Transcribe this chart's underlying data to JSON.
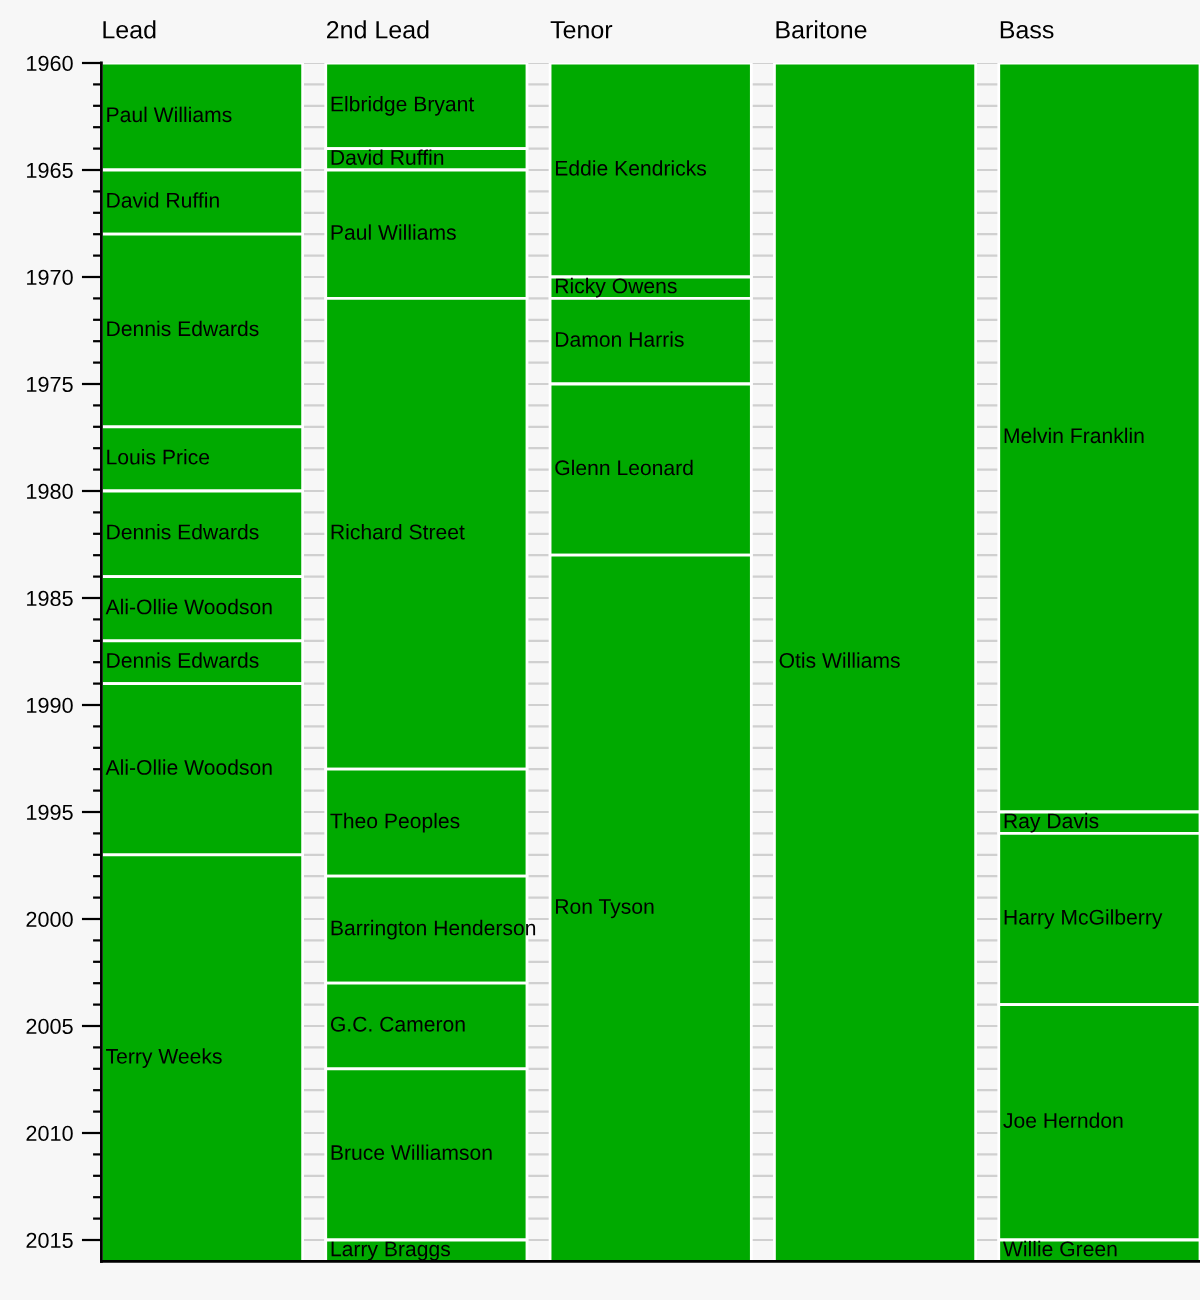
{
  "chart_data": {
    "type": "bar",
    "categories": [
      "Lead",
      "2nd Lead",
      "Tenor",
      "Baritone",
      "Bass"
    ],
    "series": [
      {
        "color": "#00aa00",
        "base": [
          1960,
          1960,
          1960,
          1960,
          1960
        ],
        "values": [
          5,
          4,
          10,
          56,
          35
        ],
        "value_labels": [
          "Paul Williams",
          "Elbridge Bryant",
          "Eddie Kendricks",
          "Otis Williams",
          "Melvin Franklin"
        ]
      },
      {
        "color": "#00aa00",
        "base": [
          1965,
          1964,
          1970,
          null,
          1995
        ],
        "values": [
          3,
          1,
          1,
          null,
          1
        ],
        "value_labels": [
          "David Ruffin",
          "David Ruffin",
          "Ricky Owens",
          null,
          "Ray Davis"
        ]
      },
      {
        "color": "#00aa00",
        "base": [
          1968,
          1965,
          1971,
          null,
          1996
        ],
        "values": [
          9,
          6,
          4,
          null,
          8
        ],
        "value_labels": [
          "Dennis Edwards",
          "Paul Williams",
          "Damon Harris",
          null,
          "Harry McGilberry"
        ]
      },
      {
        "color": "#00aa00",
        "base": [
          1977,
          1971,
          1975,
          null,
          2004
        ],
        "values": [
          3,
          22,
          8,
          null,
          11
        ],
        "value_labels": [
          "Louis Price",
          "Richard Street",
          "Glenn Leonard",
          null,
          "Joe Herndon"
        ]
      },
      {
        "color": "#00aa00",
        "base": [
          1980,
          1993,
          1983,
          null,
          2015
        ],
        "values": [
          4,
          5,
          33,
          null,
          1
        ],
        "value_labels": [
          "Dennis Edwards",
          "Theo Peoples",
          "Ron Tyson",
          null,
          "Willie Green"
        ]
      },
      {
        "color": "#00aa00",
        "base": [
          1984,
          1998,
          null,
          null,
          null
        ],
        "values": [
          3,
          5,
          null,
          null,
          null
        ],
        "value_labels": [
          "Ali-Ollie Woodson",
          "Barrington Henderson",
          null,
          null,
          null
        ]
      },
      {
        "color": "#00aa00",
        "base": [
          1987,
          2003,
          null,
          null,
          null
        ],
        "values": [
          2,
          4,
          null,
          null,
          null
        ],
        "value_labels": [
          "Dennis Edwards",
          "G.C. Cameron",
          null,
          null,
          null
        ]
      },
      {
        "color": "#00aa00",
        "base": [
          1989,
          2007,
          null,
          null,
          null
        ],
        "values": [
          8,
          8,
          null,
          null,
          null
        ],
        "value_labels": [
          "Ali-Ollie Woodson",
          "Bruce Williamson",
          null,
          null,
          null
        ]
      },
      {
        "color": "#00aa00",
        "base": [
          1997,
          2015,
          null,
          null,
          null
        ],
        "values": [
          19,
          1,
          null,
          null,
          null
        ],
        "value_labels": [
          "Terry Weeks",
          "Larry Braggs",
          null,
          null,
          null
        ]
      }
    ],
    "ylim": [
      2016,
      1960
    ],
    "yticks": [
      1960,
      {
        "value": 1961,
        "label": null
      },
      {
        "value": 1962,
        "label": null
      },
      {
        "value": 1963,
        "label": null
      },
      {
        "value": 1964,
        "label": null
      },
      1965,
      {
        "value": 1966,
        "label": null
      },
      {
        "value": 1967,
        "label": null
      },
      {
        "value": 1968,
        "label": null
      },
      {
        "value": 1969,
        "label": null
      },
      1970,
      {
        "value": 1971,
        "label": null
      },
      {
        "value": 1972,
        "label": null
      },
      {
        "value": 1973,
        "label": null
      },
      {
        "value": 1974,
        "label": null
      },
      1975,
      {
        "value": 1976,
        "label": null
      },
      {
        "value": 1977,
        "label": null
      },
      {
        "value": 1978,
        "label": null
      },
      {
        "value": 1979,
        "label": null
      },
      1980,
      {
        "value": 1981,
        "label": null
      },
      {
        "value": 1982,
        "label": null
      },
      {
        "value": 1983,
        "label": null
      },
      {
        "value": 1984,
        "label": null
      },
      1985,
      {
        "value": 1986,
        "label": null
      },
      {
        "value": 1987,
        "label": null
      },
      {
        "value": 1988,
        "label": null
      },
      {
        "value": 1989,
        "label": null
      },
      1990,
      {
        "value": 1991,
        "label": null
      },
      {
        "value": 1992,
        "label": null
      },
      {
        "value": 1993,
        "label": null
      },
      {
        "value": 1994,
        "label": null
      },
      1995,
      {
        "value": 1996,
        "label": null
      },
      {
        "value": 1997,
        "label": null
      },
      {
        "value": 1998,
        "label": null
      },
      {
        "value": 1999,
        "label": null
      },
      2000,
      {
        "value": 2001,
        "label": null
      },
      {
        "value": 2002,
        "label": null
      },
      {
        "value": 2003,
        "label": null
      },
      {
        "value": 2004,
        "label": null
      },
      2005,
      {
        "value": 2006,
        "label": null
      },
      {
        "value": 2007,
        "label": null
      },
      {
        "value": 2008,
        "label": null
      },
      {
        "value": 2009,
        "label": null
      },
      2010,
      {
        "value": 2011,
        "label": null
      },
      {
        "value": 2012,
        "label": null
      },
      {
        "value": 2013,
        "label": null
      },
      {
        "value": 2014,
        "label": null
      },
      2015
    ],
    "grid": "y"
  }
}
